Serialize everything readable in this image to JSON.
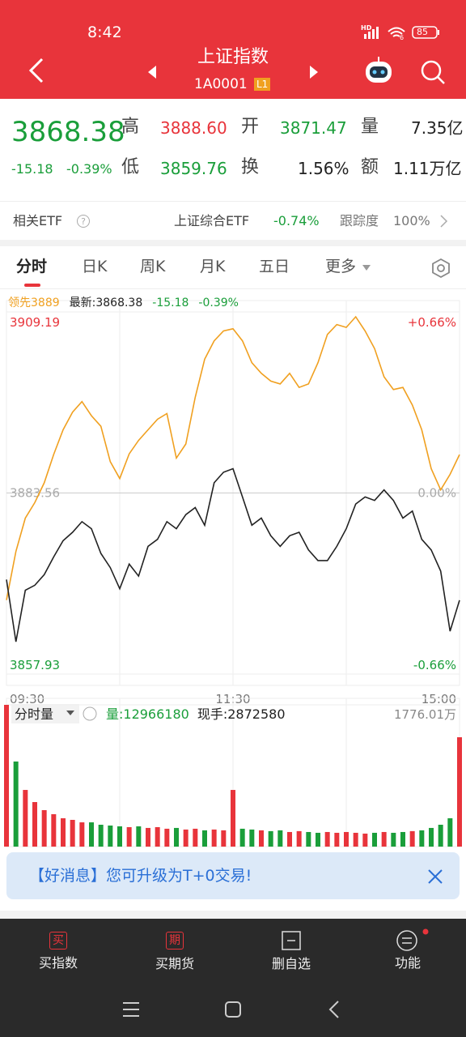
{
  "status_bar": {
    "time": "8:42",
    "network": "HD",
    "wifi": "6",
    "battery": "85"
  },
  "header": {
    "title": "上证指数",
    "code": "1A0001",
    "badge": "L1"
  },
  "quote": {
    "price": "3868.38",
    "change": "-15.18",
    "change_pct": "-0.39%",
    "fields": [
      {
        "label": "高",
        "value": "3888.60"
      },
      {
        "label": "开",
        "value": "3871.47"
      },
      {
        "label": "量",
        "value": "7.35亿"
      },
      {
        "label": "低",
        "value": "3859.76"
      },
      {
        "label": "换",
        "value": "1.56%"
      },
      {
        "label": "额",
        "value": "1.11万亿"
      }
    ]
  },
  "etf": {
    "label": "相关ETF",
    "name": "上证综合ETF",
    "change": "-0.74%",
    "tracking_label": "跟踪度",
    "tracking": "100%"
  },
  "tabs": [
    "分时",
    "日K",
    "周K",
    "月K",
    "五日",
    "更多"
  ],
  "chart_data": [
    {
      "type": "line",
      "categories": [
        "09:30",
        null,
        null,
        null,
        null,
        null,
        null,
        null,
        null,
        null,
        null,
        null,
        null,
        null,
        null,
        null,
        null,
        null,
        null,
        null,
        null,
        null,
        null,
        null,
        "11:30",
        null,
        null,
        null,
        null,
        null,
        null,
        null,
        null,
        null,
        null,
        null,
        null,
        null,
        null,
        null,
        null,
        null,
        null,
        null,
        null,
        null,
        null,
        null,
        "15:00"
      ],
      "series": [
        {
          "name": "领先3889",
          "color": "#f0a020",
          "values": [
            3868.4,
            3875.3,
            3880.0,
            3882.2,
            3885.0,
            3889.0,
            3892.5,
            3895.0,
            3896.5,
            3894.5,
            3893.0,
            3888.0,
            3885.6,
            3889.1,
            3891.0,
            3892.5,
            3894.0,
            3894.8,
            3888.5,
            3890.5,
            3897.1,
            3902.5,
            3905.1,
            3906.5,
            3906.8,
            3905.1,
            3902.0,
            3900.5,
            3899.4,
            3899.0,
            3900.5,
            3898.5,
            3899.0,
            3902.0,
            3906.0,
            3907.4,
            3907.0,
            3908.5,
            3906.5,
            3904.0,
            3900.0,
            3898.2,
            3898.5,
            3896.0,
            3892.5,
            3887.0,
            3884.0,
            3886.2,
            3889.0
          ]
        },
        {
          "name": "最新:3868.38",
          "color": "#222222",
          "values": [
            3871.3,
            3862.5,
            3869.8,
            3870.5,
            3872.0,
            3874.5,
            3876.8,
            3878.0,
            3879.5,
            3878.5,
            3875.0,
            3873.0,
            3870.0,
            3873.5,
            3871.8,
            3876.0,
            3877.0,
            3879.5,
            3878.5,
            3880.5,
            3881.5,
            3879.0,
            3885.0,
            3886.5,
            3887.0,
            3883.0,
            3879.0,
            3880.0,
            3877.5,
            3876.0,
            3877.5,
            3878.0,
            3875.5,
            3874.0,
            3874.0,
            3876.0,
            3878.5,
            3882.0,
            3883.0,
            3882.5,
            3884.0,
            3882.5,
            3880.0,
            3881.0,
            3877.0,
            3875.5,
            3872.5,
            3864.0,
            3868.38
          ]
        }
      ],
      "change": "-15.18",
      "change_pct": "-0.39%",
      "ylim": [
        3857.93,
        3909.19
      ],
      "yticks": [
        3857.93,
        3883.56,
        3909.19
      ],
      "y2lim": [
        -0.66,
        0.66
      ],
      "y2ticks": [
        {
          "value": -0.66,
          "label": "-0.66%"
        },
        {
          "value": 0,
          "label": "0.00%"
        },
        {
          "value": 0.66,
          "label": "+0.66%"
        }
      ],
      "grid": true
    },
    {
      "type": "bar",
      "title": "分时量",
      "volume_label": "量:12966180",
      "current_hand": "现手:2872580",
      "up_color": "#e8343b",
      "down_color": "#1a9e3a",
      "categories": [
        "09:30",
        null,
        null,
        null,
        null,
        null,
        null,
        null,
        null,
        null,
        null,
        null,
        null,
        null,
        null,
        null,
        null,
        null,
        null,
        null,
        null,
        null,
        null,
        null,
        "11:30",
        null,
        null,
        null,
        null,
        null,
        null,
        null,
        null,
        null,
        null,
        null,
        null,
        null,
        null,
        null,
        null,
        null,
        null,
        null,
        null,
        null,
        null,
        null,
        "15:00"
      ],
      "values": [
        1776,
        1066,
        710,
        558,
        457,
        406,
        355,
        335,
        304,
        304,
        274,
        264,
        254,
        244,
        254,
        234,
        244,
        224,
        234,
        214,
        224,
        204,
        214,
        204,
        710,
        224,
        214,
        204,
        194,
        204,
        183,
        194,
        183,
        173,
        183,
        173,
        183,
        173,
        163,
        173,
        183,
        173,
        183,
        194,
        204,
        234,
        274,
        355,
        1370
      ],
      "ylim": [
        0,
        1776.01
      ],
      "yticks": [
        {
          "value": 1776.01,
          "label": "1776.01万"
        }
      ],
      "grid": true
    }
  ],
  "banner": {
    "text": "【好消息】您可升级为T+0交易!"
  },
  "bottom_nav": [
    {
      "icon": "买",
      "label": "买指数"
    },
    {
      "icon": "期",
      "label": "买期货"
    },
    {
      "label": "删自选"
    },
    {
      "label": "功能"
    }
  ]
}
